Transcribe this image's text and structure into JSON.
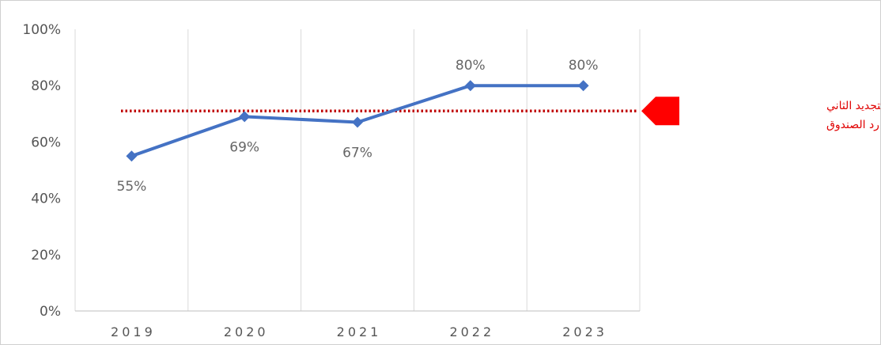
{
  "chart_data": {
    "type": "line",
    "categories": [
      "2019",
      "2020",
      "2021",
      "2022",
      "2023"
    ],
    "series": [
      {
        "values": [
          55,
          69,
          67,
          80,
          80
        ],
        "data_labels": [
          "55%",
          "69%",
          "67%",
          "80%",
          "80%"
        ],
        "color": "#4472c4"
      }
    ],
    "ylim": [
      0,
      100
    ],
    "yticks": [
      0,
      20,
      40,
      60,
      80,
      100
    ],
    "ytick_labels": [
      "0%",
      "20%",
      "40%",
      "60%",
      "80%",
      "100%"
    ],
    "grid": "vertical",
    "target": {
      "value": 71,
      "color": "#c00000",
      "marker_color": "#ff0000",
      "label_lines": [
        "هدف التجديد الثاني",
        "عشر لموارد الصندوق"
      ],
      "label_color": "#e00000"
    }
  }
}
